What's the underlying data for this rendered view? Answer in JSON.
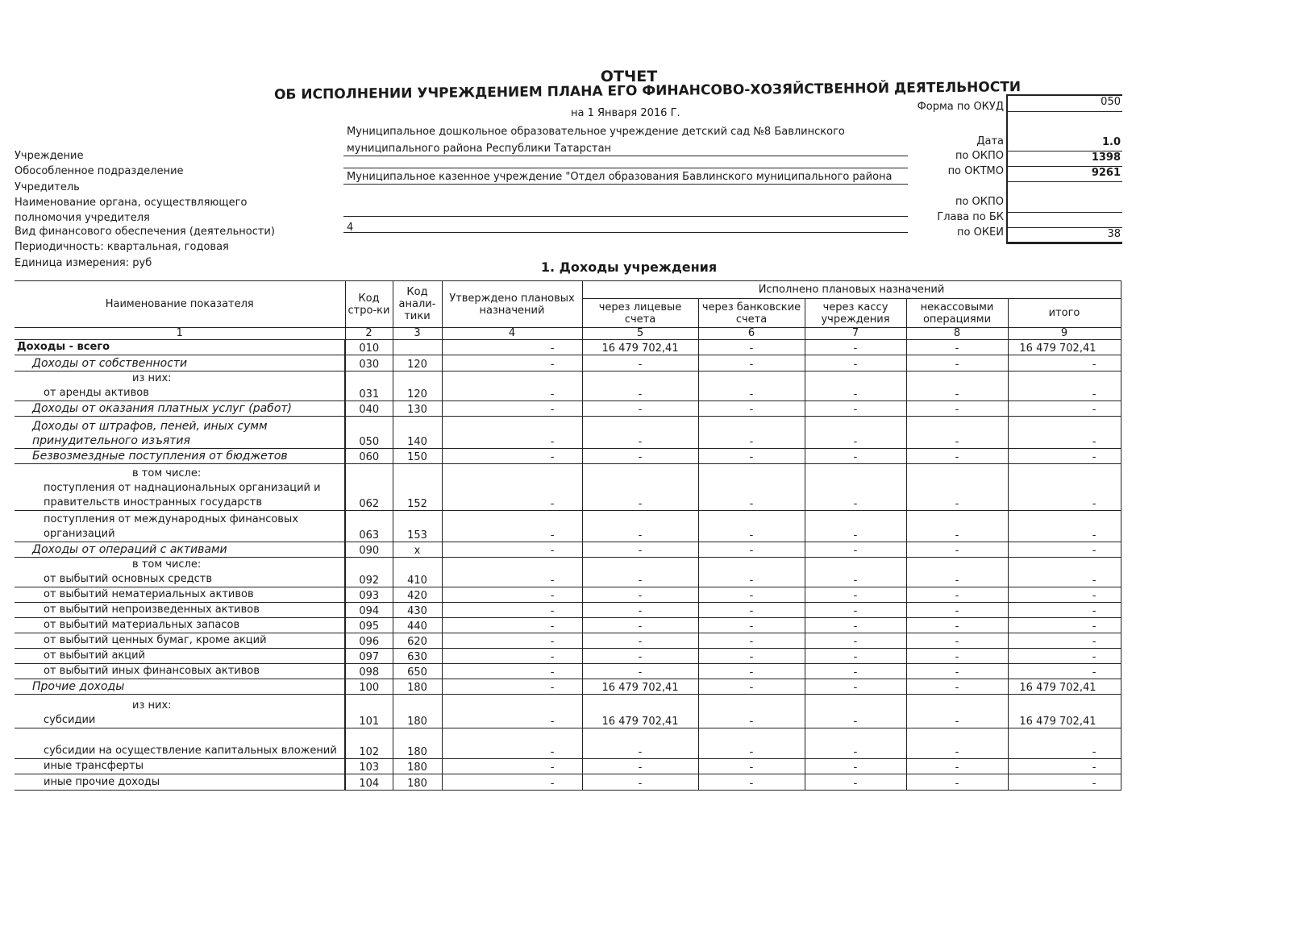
{
  "header": {
    "title": "ОТЧЕТ",
    "subtitle": "ОБ ИСПОЛНЕНИИ УЧРЕЖДЕНИЕМ ПЛАНА ЕГО ФИНАНСОВО-ХОЗЯЙСТВЕННОЙ ДЕЯТЕЛЬНОСТИ",
    "date_line": "на    1 Января 2016 Г."
  },
  "fields": {
    "institution_label": "Учреждение",
    "institution_value_1": "Муниципальное дошкольное образовательное учреждение детский сад №8 Бавлинского",
    "institution_value_2": "муниципального района Республики Татарстан",
    "subdivision_label": "Обособленное подразделение",
    "founder_label": "Учредитель",
    "founder_value": "Муниципальное казенное учреждение \"Отдел образования Бавлинского муниципального района",
    "authority_label_1": "Наименование органа, осуществляющего",
    "authority_label_2": "полномочия учредителя",
    "finance_type_label": "Вид финансового обеспечения (деятельности)",
    "finance_type_value": "4",
    "periodicity": "Периодичность: квартальная, годовая",
    "unit": "Единица измерения: руб"
  },
  "codes": [
    {
      "label": "Форма по ОКУД",
      "value": "050"
    },
    {
      "label": "Дата",
      "value": "1.0"
    },
    {
      "label": "по ОКПО",
      "value": "1398"
    },
    {
      "label": "по ОКТМО",
      "value": "9261"
    },
    {
      "label": "по ОКПО",
      "value": ""
    },
    {
      "label": "Глава по БК",
      "value": ""
    },
    {
      "label": "по ОКЕИ",
      "value": "38"
    }
  ],
  "section_title": "1. Доходы учреждения",
  "table": {
    "headers": {
      "name": "Наименование показателя",
      "code": "Код стро-ки",
      "analytic": "Код анали-тики",
      "planned": "Утверждено плановых назначений",
      "executed": "Исполнено плановых назначений",
      "c5": "через лицевые счета",
      "c6": "через банковские счета",
      "c7": "через кассу учреждения",
      "c8": "некассовыми операциями",
      "c9": "итого"
    },
    "col_numbers": [
      "1",
      "2",
      "3",
      "4",
      "5",
      "6",
      "7",
      "8",
      "9"
    ],
    "rows": [
      {
        "name": "Доходы - всего",
        "style": "total",
        "code": "010",
        "analytic": "",
        "planned": "-",
        "c5": "16 479 702,41",
        "c6": "-",
        "c7": "-",
        "c8": "-",
        "c9": "16 479 702,41"
      },
      {
        "name": "Доходы от собственности",
        "style": "section",
        "code": "030",
        "analytic": "120",
        "planned": "-",
        "c5": "-",
        "c6": "-",
        "c7": "-",
        "c8": "-",
        "c9": "-"
      },
      {
        "prefix": "из них:",
        "name": "от аренды активов",
        "style": "sub",
        "code": "031",
        "analytic": "120",
        "planned": "-",
        "c5": "-",
        "c6": "-",
        "c7": "-",
        "c8": "-",
        "c9": "-"
      },
      {
        "name": "Доходы от оказания платных услуг (работ)",
        "style": "section",
        "code": "040",
        "analytic": "130",
        "planned": "-",
        "c5": "-",
        "c6": "-",
        "c7": "-",
        "c8": "-",
        "c9": "-"
      },
      {
        "name": "Доходы от штрафов, пеней, иных сумм принудительного изъятия",
        "style": "section",
        "code": "050",
        "analytic": "140",
        "planned": "-",
        "c5": "-",
        "c6": "-",
        "c7": "-",
        "c8": "-",
        "c9": "-"
      },
      {
        "name": "Безвозмездные  поступления от бюджетов",
        "style": "section",
        "code": "060",
        "analytic": "150",
        "planned": "-",
        "c5": "-",
        "c6": "-",
        "c7": "-",
        "c8": "-",
        "c9": "-"
      },
      {
        "prefix": "в том числе:",
        "name": "поступления от наднациональных организаций и правительств  иностранных государств",
        "style": "sub",
        "code": "062",
        "analytic": "152",
        "planned": "-",
        "c5": "-",
        "c6": "-",
        "c7": "-",
        "c8": "-",
        "c9": "-"
      },
      {
        "name": "поступления от международных финансовых организаций",
        "style": "sub",
        "code": "063",
        "analytic": "153",
        "planned": "-",
        "c5": "-",
        "c6": "-",
        "c7": "-",
        "c8": "-",
        "c9": "-"
      },
      {
        "name": "Доходы от операций с активами",
        "style": "section",
        "code": "090",
        "analytic": "х",
        "planned": "-",
        "c5": "-",
        "c6": "-",
        "c7": "-",
        "c8": "-",
        "c9": "-"
      },
      {
        "prefix": "в том числе:",
        "name": "от выбытий основных средств",
        "style": "sub",
        "code": "092",
        "analytic": "410",
        "planned": "-",
        "c5": "-",
        "c6": "-",
        "c7": "-",
        "c8": "-",
        "c9": "-"
      },
      {
        "name": "от выбытий нематериальных активов",
        "style": "sub",
        "code": "093",
        "analytic": "420",
        "planned": "-",
        "c5": "-",
        "c6": "-",
        "c7": "-",
        "c8": "-",
        "c9": "-"
      },
      {
        "name": "от выбытий непроизведенных активов",
        "style": "sub",
        "code": "094",
        "analytic": "430",
        "planned": "-",
        "c5": "-",
        "c6": "-",
        "c7": "-",
        "c8": "-",
        "c9": "-"
      },
      {
        "name": "от выбытий материальных запасов",
        "style": "sub",
        "code": "095",
        "analytic": "440",
        "planned": "-",
        "c5": "-",
        "c6": "-",
        "c7": "-",
        "c8": "-",
        "c9": "-"
      },
      {
        "name": "от выбытий ценных бумаг, кроме акций",
        "style": "sub",
        "code": "096",
        "analytic": "620",
        "planned": "-",
        "c5": "-",
        "c6": "-",
        "c7": "-",
        "c8": "-",
        "c9": "-"
      },
      {
        "name": "от выбытий акций",
        "style": "sub",
        "code": "097",
        "analytic": "630",
        "planned": "-",
        "c5": "-",
        "c6": "-",
        "c7": "-",
        "c8": "-",
        "c9": "-"
      },
      {
        "name": "от выбытий иных финансовых активов",
        "style": "sub",
        "code": "098",
        "analytic": "650",
        "planned": "-",
        "c5": "-",
        "c6": "-",
        "c7": "-",
        "c8": "-",
        "c9": "-"
      },
      {
        "name": "Прочие доходы",
        "style": "section",
        "code": "100",
        "analytic": "180",
        "planned": "-",
        "c5": "16 479 702,41",
        "c6": "-",
        "c7": "-",
        "c8": "-",
        "c9": "16 479 702,41"
      },
      {
        "prefix": "из них:",
        "name": "субсидии",
        "style": "sub",
        "code": "101",
        "analytic": "180",
        "planned": "-",
        "c5": "16 479 702,41",
        "c6": "-",
        "c7": "-",
        "c8": "-",
        "c9": "16 479 702,41"
      },
      {
        "name": "субсидии на осуществление капитальных вложений",
        "style": "sub",
        "code": "102",
        "analytic": "180",
        "planned": "-",
        "c5": "-",
        "c6": "-",
        "c7": "-",
        "c8": "-",
        "c9": "-"
      },
      {
        "name": "иные трансферты",
        "style": "sub",
        "code": "103",
        "analytic": "180",
        "planned": "-",
        "c5": "-",
        "c6": "-",
        "c7": "-",
        "c8": "-",
        "c9": "-"
      },
      {
        "name": "иные прочие  доходы",
        "style": "sub",
        "code": "104",
        "analytic": "180",
        "planned": "-",
        "c5": "-",
        "c6": "-",
        "c7": "-",
        "c8": "-",
        "c9": "-"
      }
    ]
  }
}
